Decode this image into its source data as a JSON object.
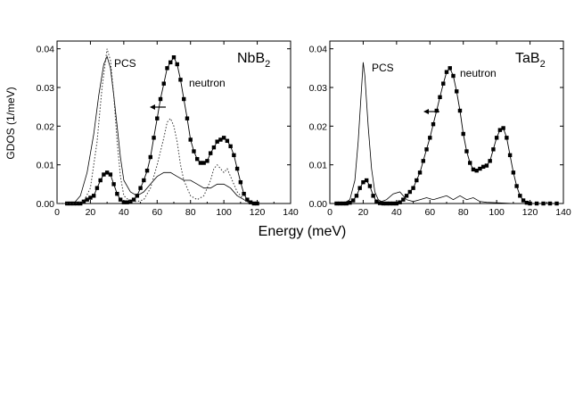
{
  "figure": {
    "ylabel": "GDOS (1/meV)",
    "xlabel": "Energy (meV)"
  },
  "chart_data": [
    {
      "type": "line",
      "panel_label": "NbB",
      "panel_label_sub": "2",
      "xlim": [
        0,
        140
      ],
      "ylim": [
        0,
        0.042
      ],
      "xticks": [
        0,
        20,
        40,
        60,
        80,
        100,
        120,
        140
      ],
      "yticks": [
        0.0,
        0.01,
        0.02,
        0.03,
        0.04
      ],
      "ytick_labels": [
        "0.00",
        "0.01",
        "0.02",
        "0.03",
        "0.04"
      ],
      "annotations": [
        "PCS",
        "neutron"
      ],
      "arrow": "left",
      "series": [
        {
          "style": "squares",
          "x": [
            6,
            8,
            10,
            12,
            14,
            16,
            18,
            20,
            22,
            24,
            26,
            28,
            30,
            32,
            34,
            36,
            38,
            40,
            42,
            44,
            46,
            48,
            50,
            52,
            54,
            56,
            58,
            60,
            62,
            64,
            66,
            68,
            70,
            72,
            74,
            76,
            78,
            80,
            82,
            84,
            86,
            88,
            90,
            92,
            94,
            96,
            98,
            100,
            102,
            104,
            106,
            108,
            110,
            112,
            114,
            116,
            118,
            120
          ],
          "y": [
            0.0,
            0.0,
            0.0,
            0.0,
            0.0,
            0.0005,
            0.001,
            0.0015,
            0.002,
            0.004,
            0.006,
            0.0075,
            0.008,
            0.0075,
            0.005,
            0.0025,
            0.001,
            0.0003,
            0.0003,
            0.0005,
            0.001,
            0.002,
            0.004,
            0.006,
            0.0085,
            0.012,
            0.017,
            0.022,
            0.027,
            0.031,
            0.035,
            0.0365,
            0.0378,
            0.036,
            0.032,
            0.027,
            0.022,
            0.0165,
            0.0135,
            0.0115,
            0.0105,
            0.0105,
            0.011,
            0.013,
            0.0145,
            0.016,
            0.0165,
            0.017,
            0.0162,
            0.0148,
            0.0125,
            0.009,
            0.0055,
            0.0025,
            0.001,
            0.0003,
            0.0,
            0.0
          ]
        },
        {
          "style": "solid",
          "x": [
            0,
            6,
            10,
            14,
            18,
            22,
            25,
            28,
            30,
            32,
            34,
            36,
            38,
            40,
            44,
            48,
            52,
            56,
            60,
            64,
            68,
            72,
            76,
            80,
            84,
            88,
            92,
            96,
            100,
            104,
            108,
            112,
            116,
            120
          ],
          "y": [
            0,
            0.0,
            0.0,
            0.002,
            0.008,
            0.018,
            0.028,
            0.036,
            0.038,
            0.035,
            0.028,
            0.02,
            0.012,
            0.006,
            0.003,
            0.002,
            0.003,
            0.005,
            0.007,
            0.008,
            0.008,
            0.007,
            0.006,
            0.006,
            0.005,
            0.004,
            0.004,
            0.005,
            0.005,
            0.004,
            0.002,
            0.001,
            0.0,
            0.0
          ]
        },
        {
          "style": "dotted",
          "x": [
            0,
            10,
            16,
            20,
            24,
            27,
            30,
            32,
            34,
            36,
            38,
            40,
            44,
            48,
            52,
            56,
            60,
            64,
            66,
            68,
            70,
            72,
            74,
            76,
            80,
            84,
            88,
            92,
            94,
            96,
            98,
            100,
            102,
            104,
            108,
            112,
            116
          ],
          "y": [
            0,
            0.0,
            0.0005,
            0.004,
            0.016,
            0.03,
            0.04,
            0.037,
            0.028,
            0.016,
            0.007,
            0.002,
            0.0005,
            0.0005,
            0.001,
            0.004,
            0.01,
            0.017,
            0.021,
            0.022,
            0.02,
            0.016,
            0.01,
            0.006,
            0.002,
            0.001,
            0.002,
            0.006,
            0.009,
            0.01,
            0.009,
            0.008,
            0.009,
            0.007,
            0.003,
            0.001,
            0.0
          ]
        }
      ]
    },
    {
      "type": "line",
      "panel_label": "TaB",
      "panel_label_sub": "2",
      "xlim": [
        0,
        140
      ],
      "ylim": [
        0,
        0.042
      ],
      "xticks": [
        0,
        20,
        40,
        60,
        80,
        100,
        120,
        140
      ],
      "yticks": [
        0.0,
        0.01,
        0.02,
        0.03,
        0.04
      ],
      "ytick_labels": [
        "0.00",
        "0.01",
        "0.02",
        "0.03",
        "0.04"
      ],
      "annotations": [
        "PCS",
        "neutron"
      ],
      "arrow": "left",
      "series": [
        {
          "style": "squares",
          "x": [
            4,
            6,
            8,
            10,
            12,
            14,
            16,
            18,
            20,
            22,
            24,
            26,
            28,
            30,
            32,
            34,
            36,
            38,
            40,
            42,
            44,
            46,
            48,
            50,
            52,
            54,
            56,
            58,
            60,
            62,
            64,
            66,
            68,
            70,
            72,
            74,
            76,
            78,
            80,
            82,
            84,
            86,
            88,
            90,
            92,
            94,
            96,
            98,
            100,
            102,
            104,
            106,
            108,
            110,
            112,
            114,
            116,
            118,
            120,
            124,
            128,
            132,
            136
          ],
          "y": [
            0,
            0,
            0,
            0,
            0.0002,
            0.0008,
            0.002,
            0.004,
            0.0055,
            0.006,
            0.0045,
            0.002,
            0.0005,
            0.0001,
            0,
            0,
            0,
            0,
            0,
            0.0003,
            0.001,
            0.002,
            0.003,
            0.004,
            0.006,
            0.008,
            0.011,
            0.014,
            0.017,
            0.0205,
            0.024,
            0.0275,
            0.031,
            0.034,
            0.035,
            0.033,
            0.029,
            0.024,
            0.018,
            0.0135,
            0.0105,
            0.0088,
            0.0085,
            0.009,
            0.0095,
            0.0098,
            0.011,
            0.014,
            0.017,
            0.019,
            0.0195,
            0.017,
            0.0125,
            0.008,
            0.0045,
            0.002,
            0.0008,
            0.0002,
            0.0,
            0,
            0,
            0,
            0
          ]
        },
        {
          "style": "solid",
          "x": [
            0,
            8,
            12,
            15,
            17,
            19,
            20,
            21,
            23,
            25,
            27,
            29,
            31,
            34,
            38,
            42,
            46,
            50,
            54,
            58,
            62,
            66,
            70,
            74,
            78,
            82,
            86,
            90,
            94,
            100,
            110,
            120,
            130,
            140
          ],
          "y": [
            0,
            0.0,
            0.001,
            0.006,
            0.016,
            0.03,
            0.0365,
            0.033,
            0.02,
            0.009,
            0.003,
            0.001,
            0.0005,
            0.001,
            0.0025,
            0.003,
            0.001,
            0.0005,
            0.001,
            0.0015,
            0.001,
            0.0015,
            0.002,
            0.001,
            0.002,
            0.001,
            0.0015,
            0.0005,
            0.0003,
            0.0002,
            0.0,
            0.0,
            0.0,
            0.0
          ]
        }
      ]
    }
  ]
}
